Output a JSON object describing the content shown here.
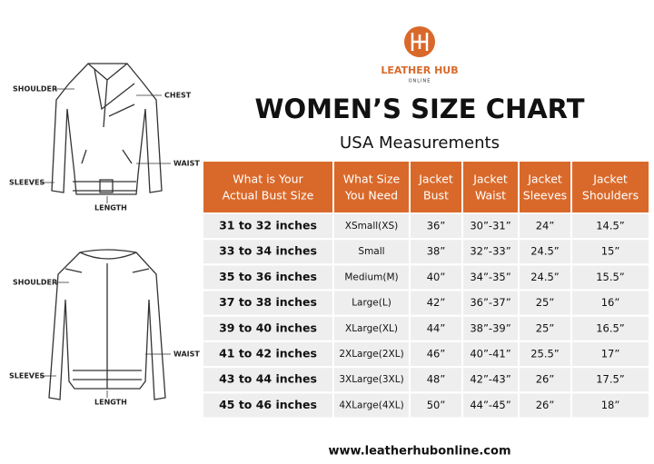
{
  "logo": {
    "name": "LEATHER HUB",
    "tagline": "ONLINE"
  },
  "title": "WOMEN’S SIZE CHART",
  "subtitle": "USA Measurements",
  "front_labels": {
    "shoulder": "SHOULDER",
    "chest": "CHEST",
    "waist": "WAIST",
    "sleeves": "SLEEVES",
    "length": "LENGTH"
  },
  "back_labels": {
    "shoulder": "SHOULDER",
    "waist": "WAIST",
    "sleeves": "SLEEVES",
    "length": "LENGTH"
  },
  "table": {
    "header": [
      [
        "What is Your",
        "Actual Bust Size"
      ],
      [
        "What Size",
        "You Need"
      ],
      [
        "Jacket",
        "Bust"
      ],
      [
        "Jacket",
        "Waist"
      ],
      [
        "Jacket",
        "Sleeves"
      ],
      [
        "Jacket",
        "Shoulders"
      ]
    ],
    "rows": [
      [
        "31 to 32 inches",
        "XSmall(XS)",
        "36”",
        "30”-31”",
        "24”",
        "14.5”"
      ],
      [
        "33 to 34 inches",
        "Small",
        "38”",
        "32”-33”",
        "24.5”",
        "15”"
      ],
      [
        "35 to 36 inches",
        "Medium(M)",
        "40”",
        "34”-35”",
        "24.5”",
        "15.5”"
      ],
      [
        "37 to 38 inches",
        "Large(L)",
        "42”",
        "36”-37”",
        "25”",
        "16”"
      ],
      [
        "39 to 40 inches",
        "XLarge(XL)",
        "44”",
        "38”-39”",
        "25”",
        "16.5”"
      ],
      [
        "41 to 42 inches",
        "2XLarge(2XL)",
        "46”",
        "40”-41”",
        "25.5”",
        "17”"
      ],
      [
        "43 to 44 inches",
        "3XLarge(3XL)",
        "48”",
        "42”-43”",
        "26”",
        "17.5”"
      ],
      [
        "45 to 46 inches",
        "4XLarge(4XL)",
        "50”",
        "44”-45”",
        "26”",
        "18”"
      ]
    ]
  },
  "footer": "www.leatherhubonline.com"
}
